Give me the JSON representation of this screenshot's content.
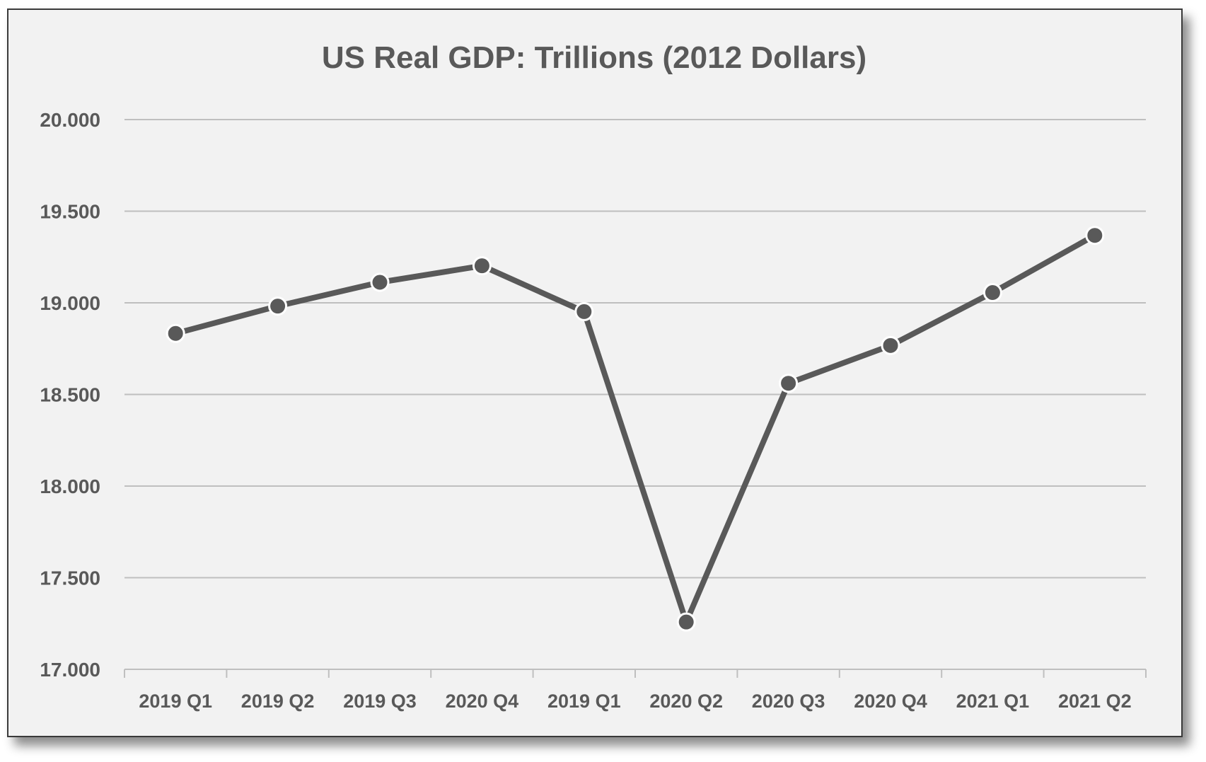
{
  "chart_data": {
    "type": "line",
    "title": "US Real GDP: Trillions (2012 Dollars)",
    "xlabel": "",
    "ylabel": "",
    "categories": [
      "2019 Q1",
      "2019 Q2",
      "2019 Q3",
      "2020 Q4",
      "2019 Q1",
      "2020 Q2",
      "2020 Q3",
      "2020 Q4",
      "2021 Q1",
      "2021 Q2"
    ],
    "series": [
      {
        "values": [
          18.833,
          18.982,
          19.112,
          19.202,
          18.952,
          17.258,
          18.561,
          18.767,
          19.056,
          19.368
        ]
      }
    ],
    "ylim": [
      17.0,
      20.0
    ],
    "yticks": [
      "17.000",
      "17.500",
      "18.000",
      "18.500",
      "19.000",
      "19.500",
      "20.000"
    ],
    "ytick_values": [
      17.0,
      17.5,
      18.0,
      18.5,
      19.0,
      19.5,
      20.0
    ],
    "grid": true,
    "legend": "none",
    "colors": {
      "line": "#595959",
      "marker_fill": "#595959",
      "marker_stroke": "#ffffff",
      "grid": "#bfbfbf",
      "background": "#f2f2f2",
      "text": "#595959"
    }
  }
}
